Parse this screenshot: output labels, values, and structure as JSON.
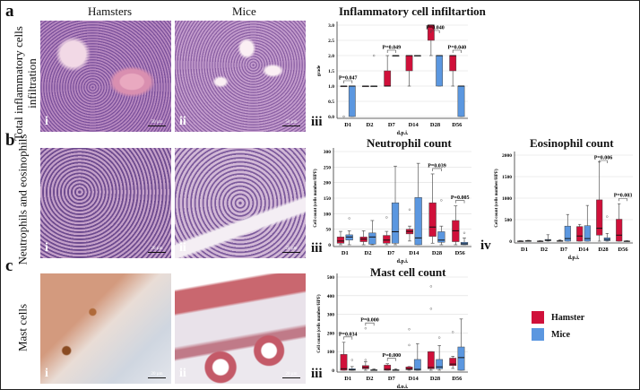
{
  "panels": {
    "a": {
      "letter": "a",
      "row_label_1": "Total inflammatory cells",
      "row_label_2": "infiltration"
    },
    "b": {
      "letter": "b",
      "row_label_1": "Neutrophils and eosinophils"
    },
    "c": {
      "letter": "c",
      "row_label_1": "Mast cells"
    }
  },
  "columns": {
    "hamsters": "Hamsters",
    "mice": "Mice"
  },
  "numerals": {
    "i": "i",
    "ii": "ii",
    "iii": "iii",
    "iv": "iv"
  },
  "scale_bar": "50 µm",
  "scale_bar_small": "20 µm",
  "legend": {
    "hamster": "Hamster",
    "mice": "Mice",
    "hamster_color": "#d0103a",
    "mice_color": "#5b97e0"
  },
  "chart_data": [
    {
      "id": "inflam",
      "type": "box",
      "title": "Inflammatory cell infiltartion",
      "xlabel": "d.p.i.",
      "ylabel": "grade",
      "ylim": [
        0,
        3
      ],
      "yticks": [
        "0.0",
        "0.5",
        "1.0",
        "1.5",
        "2.0",
        "2.5",
        "3.0"
      ],
      "ytick_values": [
        0,
        0.5,
        1,
        1.5,
        2,
        2.5,
        3
      ],
      "categories": [
        "D1",
        "D2",
        "D7",
        "D14",
        "D28",
        "D56"
      ],
      "series": [
        {
          "name": "Hamster",
          "boxes": [
            [
              1,
              1,
              1,
              1,
              1
            ],
            [
              1,
              1,
              1,
              1,
              1
            ],
            [
              1,
              1,
              1,
              1.5,
              2
            ],
            [
              1,
              1.5,
              2,
              2,
              2
            ],
            [
              2,
              2.5,
              3,
              3,
              3
            ],
            [
              1,
              1.5,
              2,
              2,
              2
            ]
          ],
          "outliers": [
            [
              0
            ],
            [],
            [],
            [],
            [],
            []
          ]
        },
        {
          "name": "Mice",
          "boxes": [
            [
              0,
              0,
              1,
              1,
              1
            ],
            [
              1,
              1,
              1,
              1,
              1
            ],
            [
              2,
              2,
              2,
              2,
              2
            ],
            [
              2,
              2,
              2,
              2,
              2
            ],
            [
              1,
              1,
              2,
              2,
              2
            ],
            [
              0,
              0,
              1,
              1,
              1
            ]
          ],
          "outliers": [
            [],
            [
              2
            ],
            [],
            [],
            [],
            []
          ]
        }
      ],
      "pvalues": [
        {
          "category": "D1",
          "label": "P=0.047"
        },
        {
          "category": "D7",
          "label": "P=0.049"
        },
        {
          "category": "D28",
          "label": "P=0.040"
        },
        {
          "category": "D56",
          "label": "P=0.040"
        }
      ]
    },
    {
      "id": "neut",
      "type": "box",
      "title": "Neutrophil  count",
      "xlabel": "d.p.i.",
      "ylabel": "Cell count (cells number/HPF)",
      "ylim": [
        0,
        300
      ],
      "yticks": [
        "0",
        "50",
        "100",
        "150",
        "200",
        "250",
        "300"
      ],
      "ytick_values": [
        0,
        50,
        100,
        150,
        200,
        250,
        300
      ],
      "categories": [
        "D1",
        "D2",
        "D7",
        "D14",
        "D28",
        "D56"
      ],
      "series": [
        {
          "name": "Hamster",
          "boxes": [
            [
              0,
              5,
              12,
              25,
              43
            ],
            [
              0,
              10,
              18,
              25,
              45
            ],
            [
              0,
              5,
              15,
              30,
              43
            ],
            [
              12,
              35,
              43,
              50,
              60
            ],
            [
              5,
              27,
              57,
              135,
              228
            ],
            [
              0,
              10,
              45,
              78,
              125
            ]
          ],
          "outliers": [
            [],
            [],
            [
              88
            ],
            [
              113
            ],
            [],
            []
          ]
        },
        {
          "name": "Mice",
          "boxes": [
            [
              0,
              15,
              25,
              32,
              45
            ],
            [
              0,
              2,
              25,
              38,
              78
            ],
            [
              0,
              5,
              42,
              135,
              253
            ],
            [
              0,
              0,
              22,
              152,
              262
            ],
            [
              0,
              8,
              15,
              42,
              60
            ],
            [
              0,
              0,
              3,
              8,
              22
            ]
          ],
          "outliers": [
            [
              85
            ],
            [],
            [],
            [],
            [
              143
            ],
            [
              38
            ]
          ]
        }
      ],
      "pvalues": [
        {
          "category": "D28",
          "label": "P=0.039"
        },
        {
          "category": "D56",
          "label": "P=0.005"
        }
      ]
    },
    {
      "id": "eos",
      "type": "box",
      "title": "Eosinophil  count",
      "xlabel": "d.p.i.",
      "ylabel": "Cell count (cells number/HPF)",
      "ylim": [
        0,
        2000
      ],
      "yticks": [
        "0",
        "500",
        "1000",
        "1500",
        "2000"
      ],
      "ytick_values": [
        0,
        500,
        1000,
        1500,
        2000
      ],
      "categories": [
        "D1",
        "D2",
        "D7",
        "D14",
        "D28",
        "D56"
      ],
      "series": [
        {
          "name": "Hamster",
          "boxes": [
            [
              0,
              0,
              0,
              5,
              10
            ],
            [
              0,
              0,
              0,
              5,
              10
            ],
            [
              0,
              0,
              5,
              10,
              30
            ],
            [
              0,
              0,
              120,
              340,
              390
            ],
            [
              0,
              140,
              300,
              960,
              1840
            ],
            [
              0,
              0,
              140,
              510,
              870
            ]
          ],
          "outliers": [
            [],
            [],
            [],
            [],
            [],
            []
          ]
        },
        {
          "name": "Mice",
          "boxes": [
            [
              0,
              0,
              5,
              10,
              20
            ],
            [
              0,
              10,
              20,
              40,
              150
            ],
            [
              0,
              0,
              60,
              350,
              620
            ],
            [
              0,
              0,
              60,
              360,
              830
            ],
            [
              0,
              10,
              40,
              80,
              180
            ],
            [
              0,
              0,
              0,
              5,
              10
            ]
          ],
          "outliers": [
            [],
            [],
            [],
            [],
            [
              570
            ],
            []
          ]
        }
      ],
      "pvalues": [
        {
          "category": "D28",
          "label": "P=0.006"
        },
        {
          "category": "D56",
          "label": "P=0.003"
        }
      ]
    },
    {
      "id": "mast",
      "type": "box",
      "title": "Mast cell  count",
      "xlabel": "d.p.i.",
      "ylabel": "Cell count (cells number/HPF)",
      "ylim": [
        0,
        500
      ],
      "yticks": [
        "0",
        "100",
        "200",
        "300",
        "400",
        "500"
      ],
      "ytick_values": [
        0,
        100,
        200,
        300,
        400,
        500
      ],
      "categories": [
        "D1",
        "D2",
        "D7",
        "D14",
        "D28",
        "D56"
      ],
      "series": [
        {
          "name": "Hamster",
          "boxes": [
            [
              0,
              0,
              8,
              85,
              150
            ],
            [
              0,
              8,
              15,
              25,
              45
            ],
            [
              0,
              0,
              5,
              28,
              35
            ],
            [
              0,
              3,
              8,
              18,
              20
            ],
            [
              0,
              8,
              15,
              100,
              100
            ],
            [
              10,
              25,
              33,
              65,
              75
            ]
          ],
          "outliers": [
            [],
            [
              55,
              225
            ],
            [],
            [
              135,
              220
            ],
            [
              330,
              450
            ],
            [
              205
            ]
          ]
        },
        {
          "name": "Mice",
          "boxes": [
            [
              0,
              0,
              3,
              8,
              20
            ],
            [
              0,
              0,
              0,
              3,
              8
            ],
            [
              0,
              0,
              0,
              3,
              8
            ],
            [
              0,
              0,
              5,
              58,
              143
            ],
            [
              0,
              8,
              18,
              58,
              133
            ],
            [
              0,
              0,
              68,
              125,
              275
            ]
          ],
          "outliers": [
            [
              55
            ],
            [],
            [],
            [],
            [
              175
            ],
            []
          ]
        }
      ],
      "pvalues": [
        {
          "category": "D1",
          "label": "P=0.034"
        },
        {
          "category": "D2",
          "label": "P=0.000"
        },
        {
          "category": "D7",
          "label": "P=0.000"
        }
      ]
    }
  ]
}
